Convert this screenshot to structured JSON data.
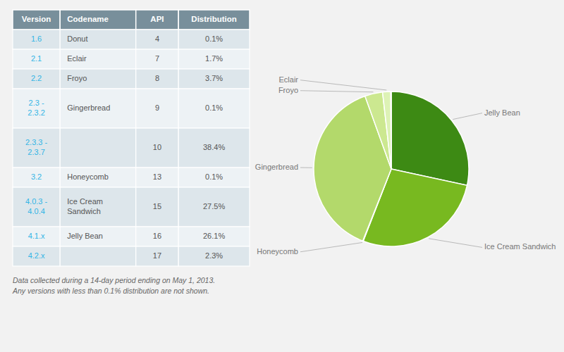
{
  "chart_data": [
    {
      "type": "table",
      "headers": [
        "Version",
        "Codename",
        "API",
        "Distribution"
      ],
      "rows": [
        [
          "1.6",
          "Donut",
          "4",
          "0.1%"
        ],
        [
          "2.1",
          "Eclair",
          "7",
          "1.7%"
        ],
        [
          "2.2",
          "Froyo",
          "8",
          "3.7%"
        ],
        [
          "2.3 -\n2.3.2",
          "Gingerbread",
          "9",
          "0.1%"
        ],
        [
          "2.3.3 -\n2.3.7",
          null,
          "10",
          "38.4%"
        ],
        [
          "3.2",
          "Honeycomb",
          "13",
          "0.1%"
        ],
        [
          "4.0.3 -\n4.0.4",
          "Ice Cream\nSandwich",
          "15",
          "27.5%"
        ],
        [
          "4.1.x",
          "Jelly Bean",
          "16",
          "26.1%"
        ],
        [
          "4.2.x",
          null,
          "17",
          "2.3%"
        ]
      ],
      "annotations": [
        "Data collected during a 14-day period ending on May 1, 2013.",
        "Any versions with less than 0.1% distribution are not shown."
      ]
    },
    {
      "type": "pie",
      "categories": [
        "Jelly Bean",
        "Ice Cream Sandwich",
        "Honeycomb",
        "Gingerbread",
        "Froyo",
        "Eclair",
        null
      ],
      "values": [
        28.4,
        27.5,
        0.1,
        38.5,
        3.7,
        1.7,
        0.1
      ],
      "colors": [
        "#3d8a14",
        "#78b920",
        "#82c122",
        "#b3d96b",
        "#cce890",
        "#ddf2b5",
        "#eef8d5"
      ]
    }
  ]
}
